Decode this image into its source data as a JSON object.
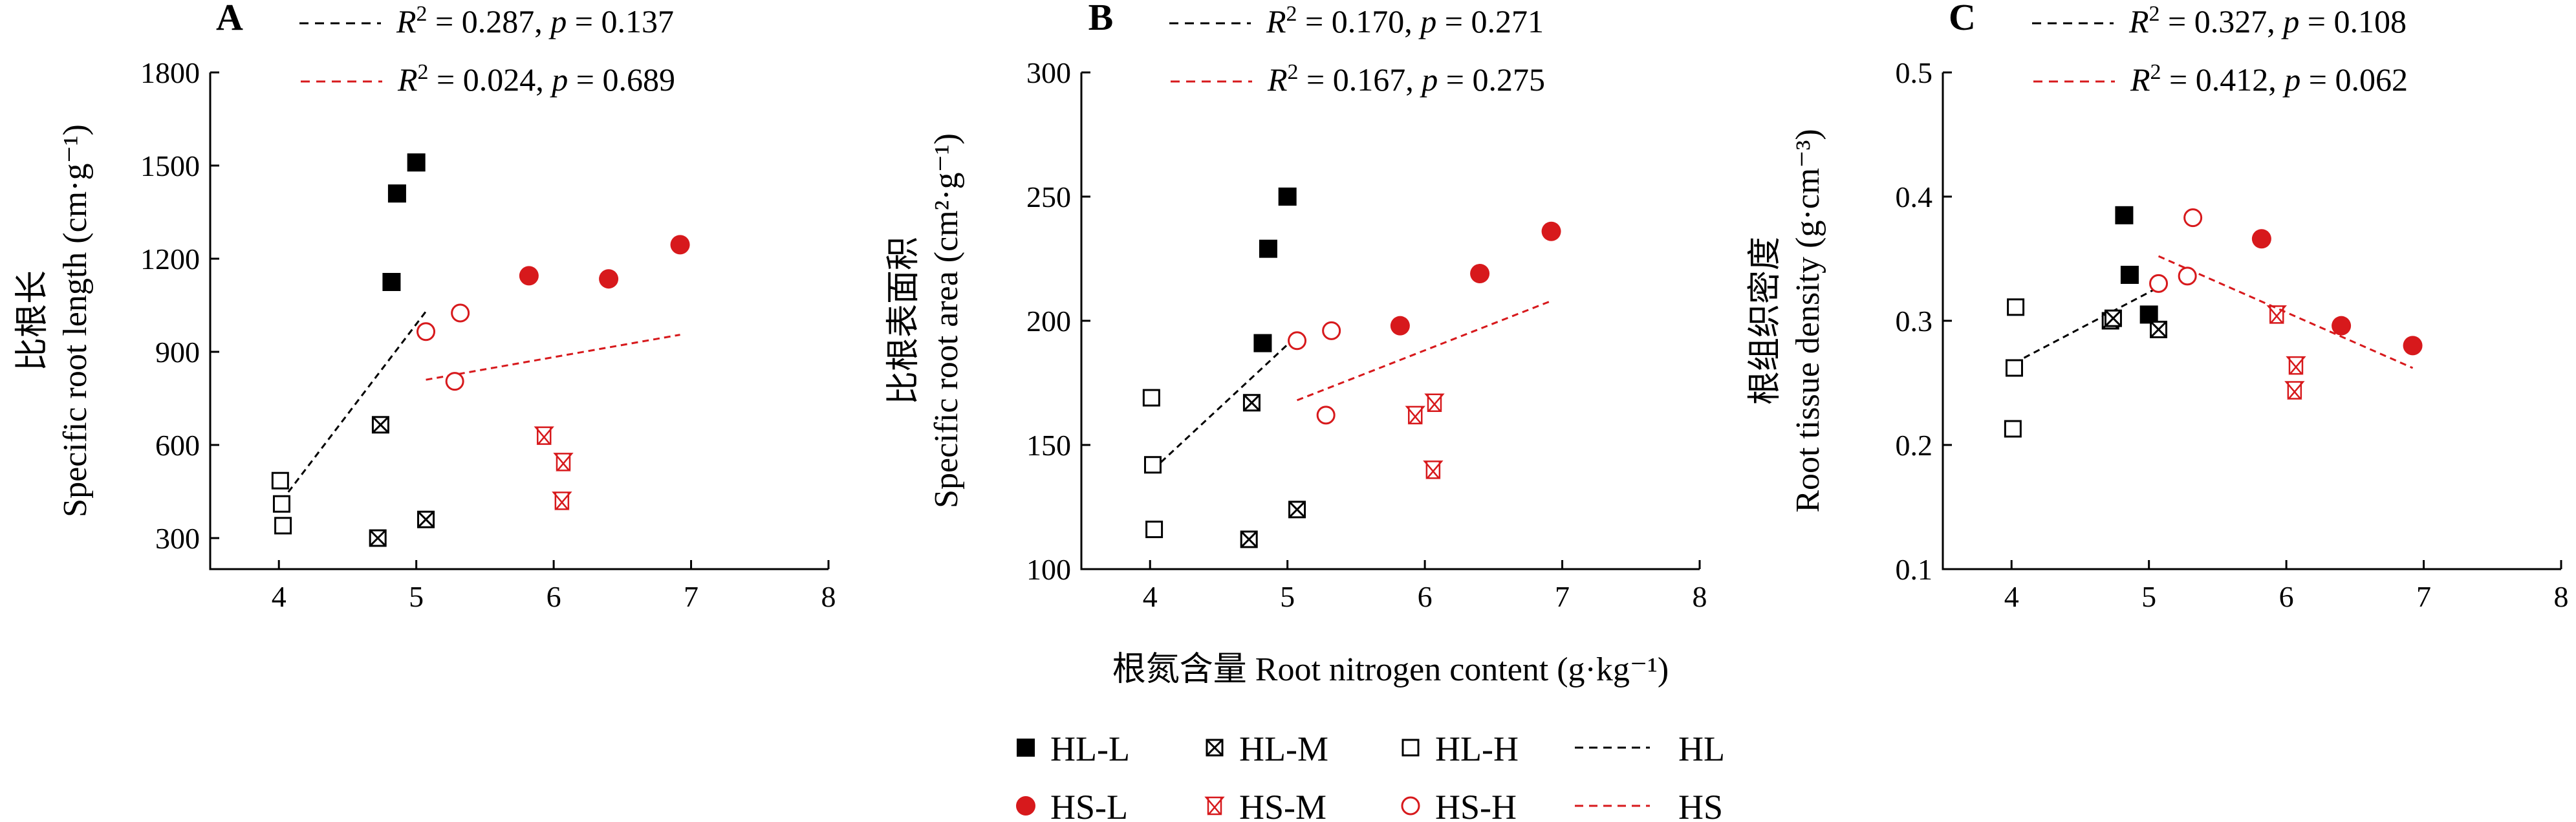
{
  "chart_data": [
    {
      "type": "scatter",
      "panel_label": "A",
      "ylabel_zh": "比根长",
      "ylabel_en": "Specific root length (cm·g⁻¹)",
      "xlim": [
        3.5,
        8
      ],
      "ylim": [
        200,
        1800
      ],
      "xticks": [
        "4",
        "5",
        "6",
        "7",
        "8"
      ],
      "yticks": [
        "300",
        "600",
        "900",
        "1200",
        "1500",
        "1800"
      ],
      "ytick_values": [
        300,
        600,
        900,
        1200,
        1500,
        1800
      ],
      "stats": [
        {
          "series": "HL",
          "r2": "0.287",
          "p": "0.137"
        },
        {
          "series": "HS",
          "r2": "0.024",
          "p": "0.689"
        }
      ],
      "series": [
        {
          "name": "HL-L",
          "points": [
            [
              4.82,
              1125
            ],
            [
              4.86,
              1410
            ],
            [
              5.0,
              1510
            ]
          ]
        },
        {
          "name": "HL-M",
          "points": [
            [
              4.72,
              300
            ],
            [
              4.74,
              665
            ],
            [
              5.07,
              360
            ]
          ]
        },
        {
          "name": "HL-H",
          "points": [
            [
              4.01,
              485
            ],
            [
              4.02,
              410
            ],
            [
              4.03,
              340
            ]
          ]
        },
        {
          "name": "HS-L",
          "points": [
            [
              5.82,
              1145
            ],
            [
              6.4,
              1135
            ],
            [
              6.92,
              1245
            ]
          ]
        },
        {
          "name": "HS-M",
          "points": [
            [
              5.93,
              630
            ],
            [
              6.07,
              545
            ],
            [
              6.06,
              420
            ]
          ]
        },
        {
          "name": "HS-H",
          "points": [
            [
              5.07,
              965
            ],
            [
              5.32,
              1025
            ],
            [
              5.28,
              805
            ]
          ]
        }
      ],
      "fits": [
        {
          "series": "HL",
          "from": [
            4.02,
            420
          ],
          "to": [
            5.07,
            1030
          ]
        },
        {
          "series": "HS",
          "from": [
            5.07,
            810
          ],
          "to": [
            6.92,
            955
          ]
        }
      ]
    },
    {
      "type": "scatter",
      "panel_label": "B",
      "ylabel_zh": "比根表面积",
      "ylabel_en": "Specific root area (cm²·g⁻¹)",
      "xlim": [
        3.5,
        8
      ],
      "ylim": [
        100,
        300
      ],
      "xticks": [
        "4",
        "5",
        "6",
        "7",
        "8"
      ],
      "yticks": [
        "100",
        "150",
        "200",
        "250",
        "300"
      ],
      "ytick_values": [
        100,
        150,
        200,
        250,
        300
      ],
      "stats": [
        {
          "series": "HL",
          "r2": "0.170",
          "p": "0.271"
        },
        {
          "series": "HS",
          "r2": "0.167",
          "p": "0.275"
        }
      ],
      "series": [
        {
          "name": "HL-L",
          "points": [
            [
              4.82,
              191
            ],
            [
              4.86,
              229
            ],
            [
              5.0,
              250
            ]
          ]
        },
        {
          "name": "HL-M",
          "points": [
            [
              4.72,
              112
            ],
            [
              4.74,
              167
            ],
            [
              5.07,
              124
            ]
          ]
        },
        {
          "name": "HL-H",
          "points": [
            [
              4.01,
              169
            ],
            [
              4.02,
              142
            ],
            [
              4.03,
              116
            ]
          ]
        },
        {
          "name": "HS-L",
          "points": [
            [
              5.82,
              198
            ],
            [
              6.4,
              219
            ],
            [
              6.92,
              236
            ]
          ]
        },
        {
          "name": "HS-M",
          "points": [
            [
              5.93,
              162
            ],
            [
              6.07,
              167
            ],
            [
              6.06,
              140
            ]
          ]
        },
        {
          "name": "HS-H",
          "points": [
            [
              5.07,
              192
            ],
            [
              5.32,
              196
            ],
            [
              5.28,
              162
            ]
          ]
        }
      ],
      "fits": [
        {
          "series": "HL",
          "from": [
            4.02,
            140
          ],
          "to": [
            5.07,
            194
          ]
        },
        {
          "series": "HS",
          "from": [
            5.07,
            168
          ],
          "to": [
            6.92,
            208
          ]
        }
      ]
    },
    {
      "type": "scatter",
      "panel_label": "C",
      "ylabel_zh": "根组织密度",
      "ylabel_en": "Root tissue density (g·cm⁻³)",
      "xlim": [
        3.5,
        8
      ],
      "ylim": [
        0.1,
        0.5
      ],
      "xticks": [
        "4",
        "5",
        "6",
        "7",
        "8"
      ],
      "yticks": [
        "0.1",
        "0.2",
        "0.3",
        "0.4",
        "0.5"
      ],
      "ytick_values": [
        0.1,
        0.2,
        0.3,
        0.4,
        0.5
      ],
      "stats": [
        {
          "series": "HL",
          "r2": "0.327",
          "p": "0.108"
        },
        {
          "series": "HS",
          "r2": "0.412",
          "p": "0.062"
        }
      ],
      "series": [
        {
          "name": "HL-L",
          "points": [
            [
              4.82,
              0.385
            ],
            [
              4.86,
              0.337
            ],
            [
              5.0,
              0.305
            ]
          ]
        },
        {
          "name": "HL-M",
          "points": [
            [
              4.72,
              0.3
            ],
            [
              4.74,
              0.302
            ],
            [
              5.07,
              0.293
            ]
          ]
        },
        {
          "name": "HL-H",
          "points": [
            [
              4.01,
              0.213
            ],
            [
              4.02,
              0.262
            ],
            [
              4.03,
              0.311
            ]
          ]
        },
        {
          "name": "HS-L",
          "points": [
            [
              5.82,
              0.366
            ],
            [
              6.4,
              0.296
            ],
            [
              6.92,
              0.28
            ]
          ]
        },
        {
          "name": "HS-M",
          "points": [
            [
              5.93,
              0.305
            ],
            [
              6.07,
              0.264
            ],
            [
              6.06,
              0.244
            ]
          ]
        },
        {
          "name": "HS-H",
          "points": [
            [
              5.07,
              0.33
            ],
            [
              5.32,
              0.383
            ],
            [
              5.28,
              0.336
            ]
          ]
        }
      ],
      "fits": [
        {
          "series": "HL",
          "from": [
            4.02,
            0.266
          ],
          "to": [
            5.07,
            0.327
          ]
        },
        {
          "series": "HS",
          "from": [
            5.07,
            0.352
          ],
          "to": [
            6.92,
            0.262
          ]
        }
      ]
    }
  ],
  "xlabel": "根氮含量 Root nitrogen content (g·kg⁻¹)",
  "legend": [
    {
      "label": "HL-L",
      "marker": "filled-square",
      "color": "#000000"
    },
    {
      "label": "HL-M",
      "marker": "crossed-square",
      "color": "#000000"
    },
    {
      "label": "HL-H",
      "marker": "open-square",
      "color": "#000000"
    },
    {
      "label": "HL",
      "marker": "dashed-line",
      "color": "#000000"
    },
    {
      "label": "HS-L",
      "marker": "filled-circle",
      "color": "#d7191c"
    },
    {
      "label": "HS-M",
      "marker": "hourglass",
      "color": "#d7191c"
    },
    {
      "label": "HS-H",
      "marker": "open-circle",
      "color": "#d7191c"
    },
    {
      "label": "HS",
      "marker": "dashed-line",
      "color": "#d7191c"
    }
  ],
  "colors": {
    "HL": "#000000",
    "HS": "#d7191c"
  }
}
